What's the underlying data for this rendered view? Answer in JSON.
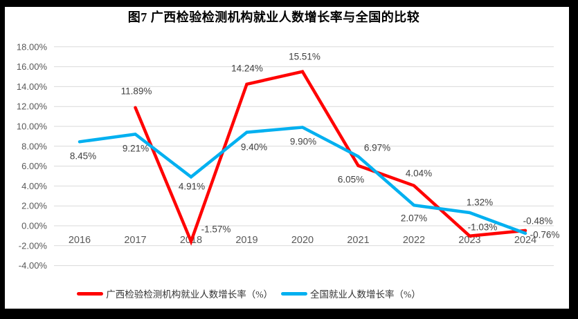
{
  "chart_data": {
    "type": "line",
    "title": "图7 广西检验检测机构就业人数增长率与全国的比较",
    "categories": [
      "2016",
      "2017",
      "2018",
      "2019",
      "2020",
      "2021",
      "2022",
      "2023",
      "2024"
    ],
    "series": [
      {
        "name": "广西检验检测机构就业人数增长率（%）",
        "color": "#FF0000",
        "values": [
          null,
          11.89,
          -1.57,
          14.24,
          15.51,
          6.05,
          4.04,
          -1.03,
          -0.48
        ],
        "labels": [
          null,
          "11.89%",
          "-1.57%",
          "14.24%",
          "15.51%",
          "6.05%",
          "4.04%",
          "-1.03%",
          "-0.48%"
        ]
      },
      {
        "name": "全国就业人数增长率（%）",
        "color": "#00B0F0",
        "values": [
          8.45,
          9.21,
          4.91,
          9.4,
          9.9,
          6.97,
          2.07,
          1.32,
          -0.76
        ],
        "labels": [
          "8.45%",
          "9.21%",
          "4.91%",
          "9.40%",
          "9.90%",
          "6.97%",
          "2.07%",
          "1.32%",
          "-0.76%"
        ]
      }
    ],
    "ylim": [
      -4,
      18
    ],
    "ytick_step": 2,
    "yticklabels": [
      "18.00%",
      "16.00%",
      "14.00%",
      "12.00%",
      "10.00%",
      "8.00%",
      "6.00%",
      "4.00%",
      "2.00%",
      "0.00%",
      "-2.00%",
      "-4.00%"
    ],
    "xlabel": "",
    "ylabel": "",
    "grid": true,
    "legend_position": "bottom",
    "colors": {
      "gridline": "#D9D9D9",
      "axis_text": "#595959",
      "data_label_text": "#404040",
      "background": "#FFFFFF",
      "frame": "#000000"
    }
  }
}
